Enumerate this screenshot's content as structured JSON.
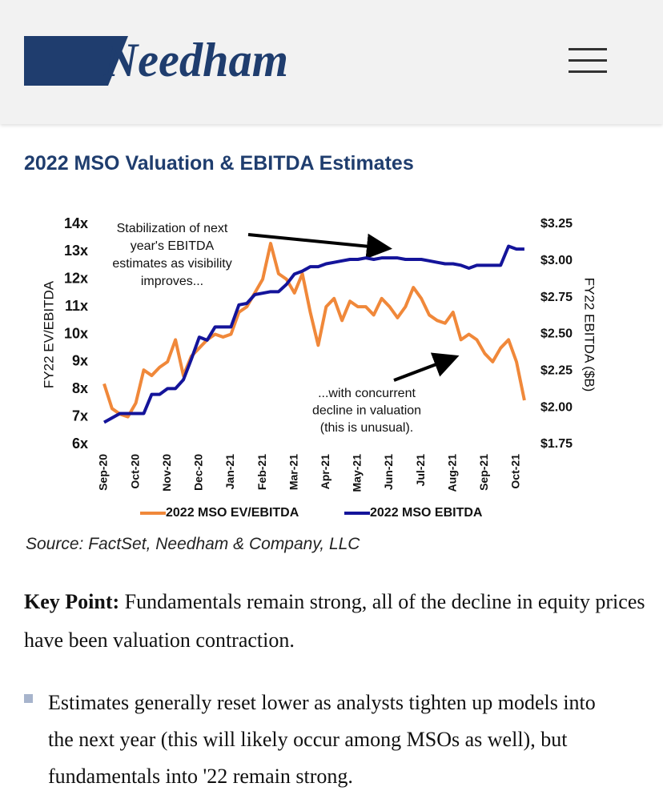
{
  "header": {
    "logo": "Needham"
  },
  "title": "2022 MSO Valuation & EBITDA Estimates",
  "chart_data": {
    "type": "line",
    "categories": [
      "Sep-20",
      null,
      null,
      null,
      "Oct-20",
      null,
      null,
      null,
      "Nov-20",
      null,
      null,
      null,
      "Dec-20",
      null,
      null,
      null,
      "Jan-21",
      null,
      null,
      null,
      "Feb-21",
      null,
      null,
      null,
      "Mar-21",
      null,
      null,
      null,
      "Apr-21",
      null,
      null,
      null,
      "May-21",
      null,
      null,
      null,
      "Jun-21",
      null,
      null,
      null,
      "Jul-21",
      null,
      null,
      null,
      "Aug-21",
      null,
      null,
      null,
      "Sep-21",
      null,
      null,
      null,
      "Oct-21",
      null
    ],
    "series": [
      {
        "name": "2022 MSO EV/EBITDA",
        "color": "#f0883a",
        "values": [
          8.2,
          7.3,
          7.1,
          7.0,
          7.5,
          8.7,
          8.5,
          8.8,
          9.0,
          9.8,
          8.5,
          9.2,
          9.5,
          9.8,
          10.0,
          9.9,
          10.0,
          10.8,
          11.0,
          11.5,
          12.0,
          13.3,
          12.2,
          12.0,
          11.5,
          12.2,
          10.8,
          9.6,
          11.0,
          11.3,
          10.5,
          11.2,
          11.0,
          11.0,
          10.7,
          11.3,
          11.0,
          10.6,
          11.0,
          11.7,
          11.3,
          10.7,
          10.5,
          10.4,
          10.8,
          9.8,
          10.0,
          9.8,
          9.3,
          9.0,
          9.5,
          9.8,
          9.0,
          7.6
        ]
      },
      {
        "name": "2022 MSO EBITDA",
        "color": "#14149a",
        "axis": "y2",
        "values": [
          1.9,
          1.93,
          1.96,
          1.96,
          1.96,
          1.96,
          2.09,
          2.09,
          2.13,
          2.13,
          2.19,
          2.33,
          2.48,
          2.46,
          2.55,
          2.55,
          2.55,
          2.7,
          2.71,
          2.77,
          2.78,
          2.79,
          2.79,
          2.84,
          2.91,
          2.93,
          2.96,
          2.96,
          2.98,
          2.99,
          3.0,
          3.01,
          3.01,
          3.02,
          3.01,
          3.02,
          3.02,
          3.02,
          3.01,
          3.01,
          3.01,
          3.0,
          2.99,
          2.98,
          2.98,
          2.97,
          2.95,
          2.97,
          2.97,
          2.97,
          2.97,
          3.1,
          3.08,
          3.08
        ]
      }
    ],
    "ylim": [
      6,
      14
    ],
    "yticks": [
      {
        "value": 6,
        "label": "6x"
      },
      {
        "value": 7,
        "label": "7x"
      },
      {
        "value": 8,
        "label": "8x"
      },
      {
        "value": 9,
        "label": "9x"
      },
      {
        "value": 10,
        "label": "10x"
      },
      {
        "value": 11,
        "label": "11x"
      },
      {
        "value": 12,
        "label": "12x"
      },
      {
        "value": 13,
        "label": "13x"
      },
      {
        "value": 14,
        "label": "14x"
      }
    ],
    "y2lim": [
      1.75,
      3.25
    ],
    "y2ticks": [
      {
        "value": 1.75,
        "label": "$1.75"
      },
      {
        "value": 2.0,
        "label": "$2.00"
      },
      {
        "value": 2.25,
        "label": "$2.25"
      },
      {
        "value": 2.5,
        "label": "$2.50"
      },
      {
        "value": 2.75,
        "label": "$2.75"
      },
      {
        "value": 3.0,
        "label": "$3.00"
      },
      {
        "value": 3.25,
        "label": "$3.25"
      }
    ],
    "y_label": "FY22 EV/EBITDA",
    "y2_label": "FY22 EBITDA ($B)",
    "legend": "bottom",
    "annotations": [
      {
        "lines": [
          "Stabilization of next",
          "year's EBITDA",
          "estimates as visibility",
          "improves..."
        ]
      },
      {
        "lines": [
          "...with concurrent",
          "decline in valuation",
          "(this is unusual)."
        ]
      }
    ]
  },
  "source": "Source: FactSet, Needham & Company, LLC",
  "key_point": {
    "label": "Key Point:",
    "text": "Fundamentals remain strong, all of the decline in equity prices have been valuation contraction."
  },
  "bullets": [
    "Estimates generally reset lower as analysts tighten up models into the next year (this will likely occur among MSOs as well), but fundamentals into '22 remain strong."
  ]
}
